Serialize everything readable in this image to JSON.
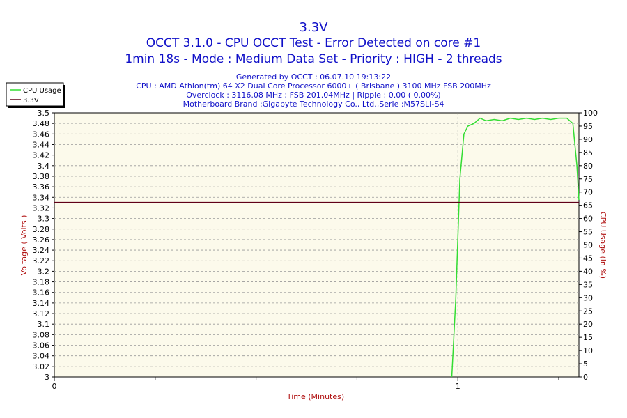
{
  "colors": {
    "background": "#ffffff",
    "plot_background": "#fcfaeb",
    "title": "#1010c8",
    "axis_label": "#b01010",
    "grid": "#999999",
    "cpu_usage": "#33dd33",
    "voltage": "#600018"
  },
  "chart_data": {
    "type": "line",
    "title": "3.3V",
    "subtitle_lines": [
      "OCCT 3.1.0 - CPU OCCT Test - Error Detected on core #1",
      "1min 18s - Mode : Medium Data Set - Priority : HIGH - 2 threads"
    ],
    "info_lines": [
      "Generated by OCCT : 06.07.10 19:13:22",
      "CPU : AMD Athlon(tm) 64 X2 Dual Core Processor 6000+ ( Brisbane ) 3100 MHz FSB 200MHz",
      "Overclock : 3116.08 MHz ; FSB 201.04MHz | Ripple : 0.00 ( 0.00%)",
      "Motherboard Brand :Gigabyte Technology Co., Ltd.,Serie :M57SLI-S4"
    ],
    "xlabel": "Time (Minutes)",
    "ylabel_left": "Voltage ( Volts )",
    "ylabel_right": "CPU Usage (in %)",
    "xlim": [
      0,
      1.3
    ],
    "x_ticks": [
      "0",
      "1"
    ],
    "x_tick_values": [
      0,
      1
    ],
    "ylim_left": [
      3.0,
      3.5
    ],
    "y_ticks_left": [
      "3",
      "3.02",
      "3.04",
      "3.06",
      "3.08",
      "3.1",
      "3.12",
      "3.14",
      "3.16",
      "3.18",
      "3.2",
      "3.22",
      "3.24",
      "3.26",
      "3.28",
      "3.3",
      "3.32",
      "3.34",
      "3.36",
      "3.38",
      "3.4",
      "3.42",
      "3.44",
      "3.46",
      "3.48",
      "3.5"
    ],
    "ylim_right": [
      0,
      100
    ],
    "y_ticks_right": [
      "0",
      "5",
      "10",
      "15",
      "20",
      "25",
      "30",
      "35",
      "40",
      "45",
      "50",
      "55",
      "60",
      "65",
      "70",
      "75",
      "80",
      "85",
      "90",
      "95",
      "100"
    ],
    "grid": true,
    "legend_position": "top-left",
    "series": [
      {
        "name": "CPU Usage",
        "axis": "right",
        "x": [
          0.985,
          0.995,
          1.005,
          1.015,
          1.025,
          1.04,
          1.055,
          1.07,
          1.09,
          1.11,
          1.13,
          1.15,
          1.17,
          1.19,
          1.21,
          1.23,
          1.25,
          1.27,
          1.285,
          1.295,
          1.3
        ],
        "y": [
          0,
          30,
          75,
          92,
          95,
          96,
          98,
          97,
          97.5,
          97,
          98,
          97.5,
          98,
          97.5,
          98,
          97.5,
          98,
          98,
          96,
          80,
          67
        ]
      },
      {
        "name": "3.3V",
        "axis": "left",
        "x": [
          0,
          1.3
        ],
        "y": [
          3.33,
          3.33
        ]
      }
    ]
  }
}
